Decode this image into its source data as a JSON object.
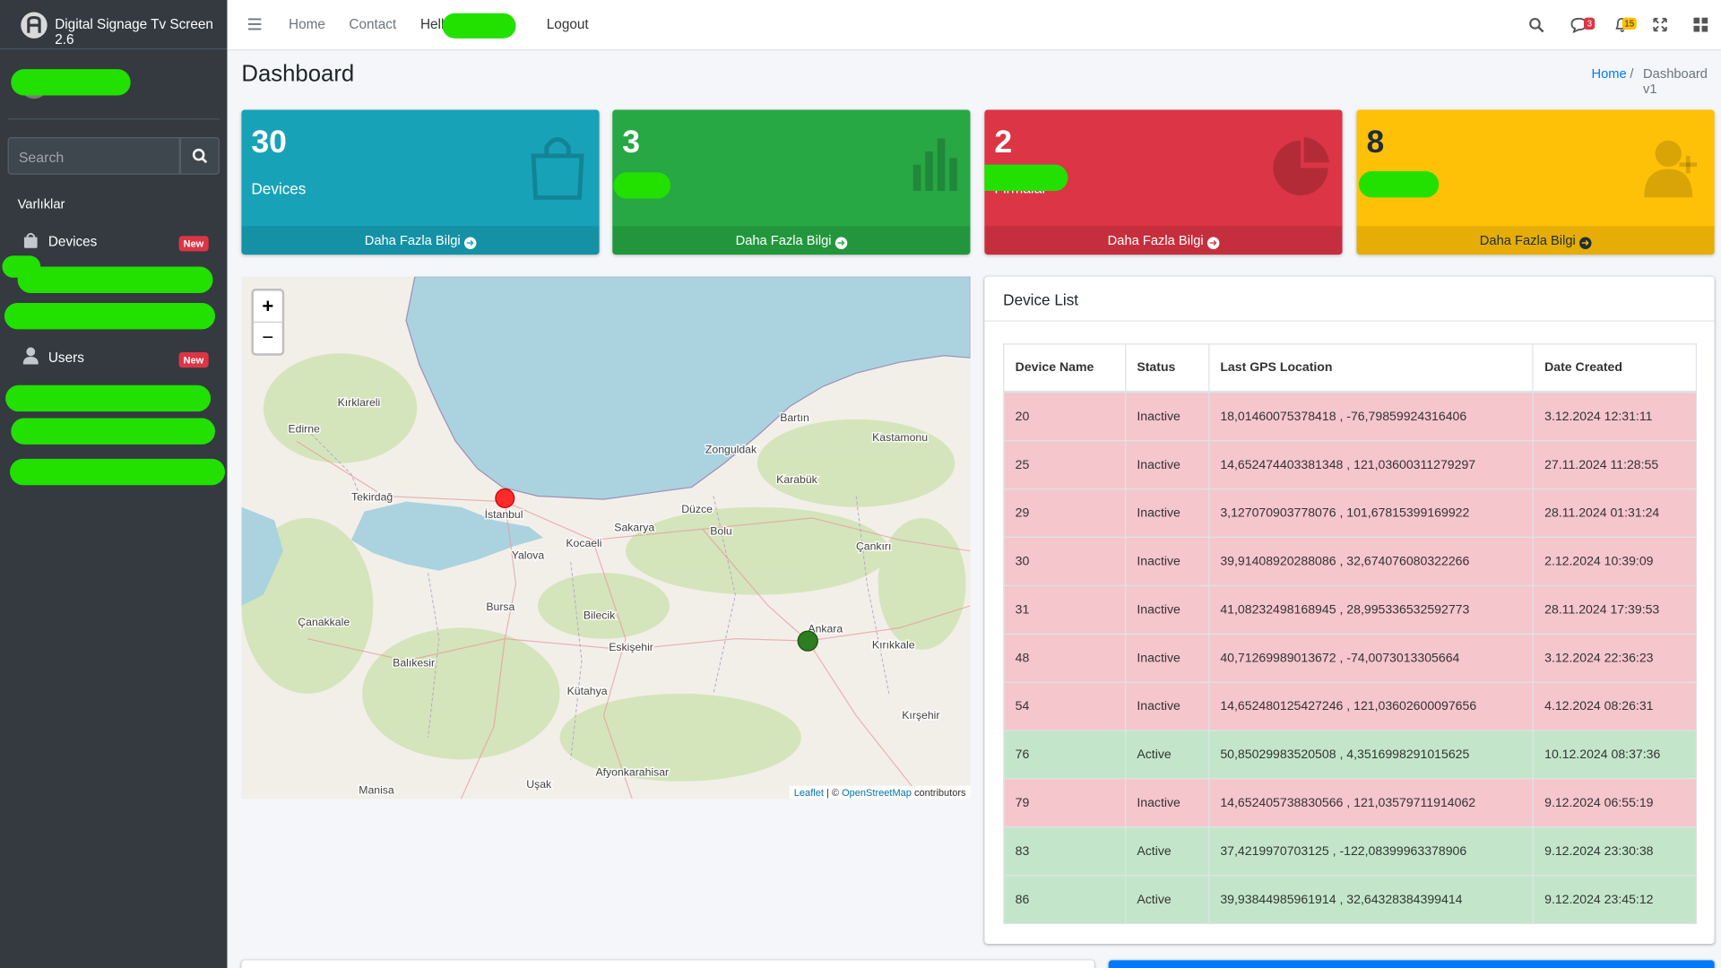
{
  "brand": "Digital Signage Tv Screen 2.6",
  "sidebar": {
    "search_placeholder": "Search",
    "section": "Varlıklar",
    "items": [
      {
        "label": "Devices",
        "badge": "New"
      },
      {
        "label": "Users",
        "badge": "New"
      }
    ]
  },
  "navbar": {
    "links": [
      "Home",
      "Contact",
      "Hell",
      "Logout"
    ],
    "message_count": "3",
    "notification_count": "15"
  },
  "header": {
    "title": "Dashboard",
    "breadcrumb": [
      "Home",
      "/",
      "Dashboard v1"
    ]
  },
  "cards": [
    {
      "value": 30,
      "label": "Devices",
      "link": "Daha Fazla Bilgi",
      "color": "#17a2b8"
    },
    {
      "value": 3,
      "link": "Daha Fazla Bilgi",
      "color": "#28a745"
    },
    {
      "value": 2,
      "label": "Firmalar",
      "link": "Daha Fazla Bilgi",
      "color": "#dc3545"
    },
    {
      "value": 8,
      "link": "Daha Fazla Bilgi",
      "color": "#ffc107"
    }
  ],
  "map": {
    "zoom": [
      "+",
      "−"
    ],
    "labels": [
      "İstanbul",
      "Kocaeli",
      "Edirne",
      "Tekirdağ",
      "Bursa",
      "Eskişehir",
      "Ankara",
      "Kütahya",
      "Balıkesir",
      "Zonguldak",
      "Bartın",
      "Kastamonu",
      "Karabük",
      "Düzce",
      "Bolu",
      "Sakarya",
      "Yalova",
      "Çankırı",
      "Kırıkkale",
      "Kırşehir",
      "Afyonkarahisar",
      "Manisa",
      "Uşak",
      "Kırklareli",
      "Bilecik",
      "Çanakkale"
    ],
    "attribution": [
      "Leaflet",
      " | © ",
      "OpenStreetMap",
      " contributors"
    ]
  },
  "table": {
    "title": "Device List",
    "columns": [
      "Device Name",
      "Status",
      "Last GPS Location",
      "Date Created"
    ],
    "rows": [
      {
        "cells": [
          "20",
          "Inactive",
          "18,01460075378418 , -76,79859924316406",
          "3.12.2024 12:31:11"
        ],
        "color": "#f5c6cb"
      },
      {
        "cells": [
          "25",
          "Inactive",
          "14,652474403381348 , 121,03600311279297",
          "27.11.2024 11:28:55"
        ],
        "color": "#f5c6cb"
      },
      {
        "cells": [
          "29",
          "Inactive",
          "3,127070903778076 , 101,67815399169922",
          "28.11.2024 01:31:24"
        ],
        "color": "#f5c6cb"
      },
      {
        "cells": [
          "30",
          "Inactive",
          "39,91408920288086 , 32,674076080322266",
          "2.12.2024 10:39:09"
        ],
        "color": "#f5c6cb"
      },
      {
        "cells": [
          "31",
          "Inactive",
          "41,08232498168945 , 28,995336532592773",
          "28.11.2024 17:39:53"
        ],
        "color": "#f5c6cb"
      },
      {
        "cells": [
          "48",
          "Inactive",
          "40,71269989013672 , -74,0073013305664",
          "3.12.2024 22:36:23"
        ],
        "color": "#f5c6cb"
      },
      {
        "cells": [
          "54",
          "Inactive",
          "14,652480125427246 , 121,03602600097656",
          "4.12.2024 08:26:31"
        ],
        "color": "#f5c6cb"
      },
      {
        "cells": [
          "76",
          "Active",
          "50,85029983520508 , 4,3516998291015625",
          "10.12.2024 08:37:36"
        ],
        "color": "#c3e6cb"
      },
      {
        "cells": [
          "79",
          "Inactive",
          "14,652405738830566 , 121,03579711914062",
          "9.12.2024 06:55:19"
        ],
        "color": "#f5c6cb"
      },
      {
        "cells": [
          "83",
          "Active",
          "37,4219970703125 , -122,08399963378906",
          "9.12.2024 23:30:38"
        ],
        "color": "#c3e6cb"
      },
      {
        "cells": [
          "86",
          "Active",
          "39,93844985961914 , 32,64328384399414",
          "9.12.2024 23:45:12"
        ],
        "color": "#c3e6cb"
      }
    ]
  }
}
